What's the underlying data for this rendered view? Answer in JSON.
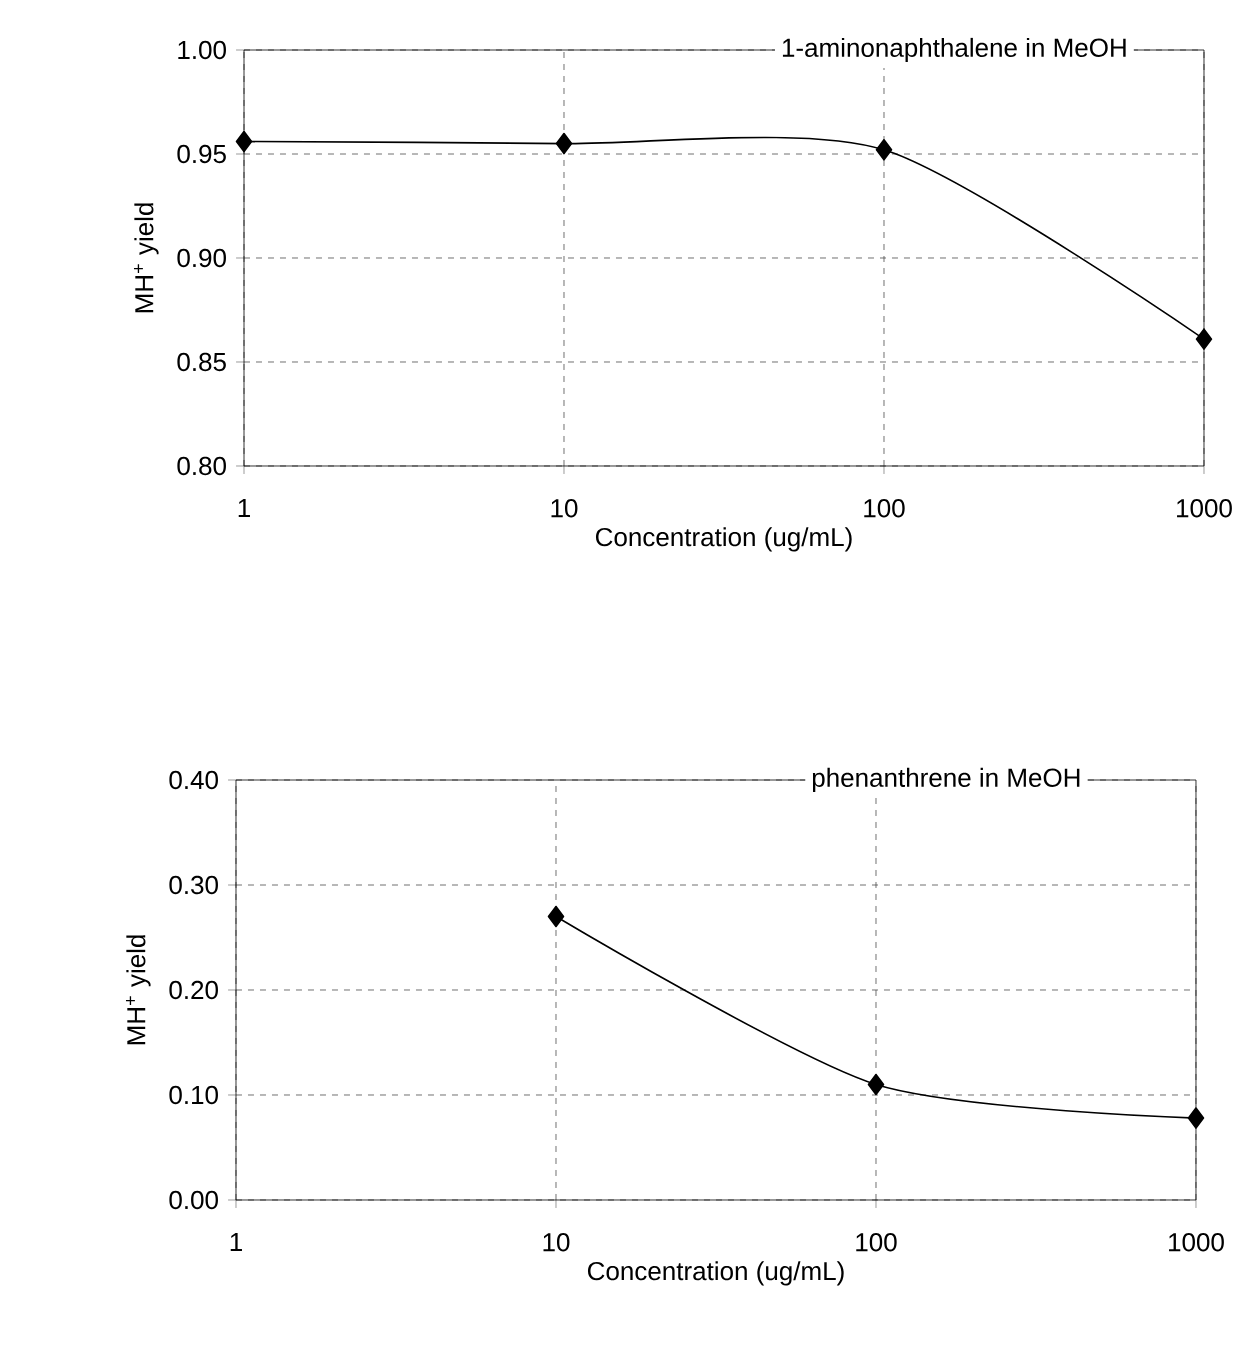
{
  "chart_data": [
    {
      "type": "line",
      "title": "1-aminonaphthalene in MeOH",
      "xlabel": "Concentration (ug/mL)",
      "ylabel": "MH$^{+}$ yield",
      "log": "x",
      "grid": true,
      "marker": "diamond",
      "line_style": "solid",
      "x": [
        1,
        10,
        100,
        1000
      ],
      "series": [
        {
          "color": "#000000",
          "values": [
            0.956,
            0.955,
            0.952,
            0.861
          ]
        }
      ],
      "xlim": [
        1,
        1000
      ],
      "xticks": [
        1,
        10,
        100,
        1000
      ],
      "ylim": [
        0.8,
        1.0
      ],
      "yticks": [
        {
          "value": 0.8,
          "label": "0.80"
        },
        {
          "value": 0.85,
          "label": "0.85"
        },
        {
          "value": 0.9,
          "label": "0.90"
        },
        {
          "value": 0.95,
          "label": "0.95"
        },
        {
          "value": 1.0,
          "label": "1.00"
        }
      ]
    },
    {
      "type": "line",
      "title": "phenanthrene in MeOH",
      "xlabel": "Concentration (ug/mL)",
      "ylabel": "MH$^{+}$ yield",
      "log": "x",
      "grid": true,
      "marker": "diamond",
      "line_style": "solid",
      "x": [
        10,
        100,
        1000
      ],
      "series": [
        {
          "color": "#000000",
          "values": [
            0.27,
            0.11,
            0.078
          ]
        }
      ],
      "xlim": [
        1,
        1000
      ],
      "xticks": [
        1,
        10,
        100,
        1000
      ],
      "ylim": [
        0.0,
        0.4
      ],
      "yticks": [
        {
          "value": 0.0,
          "label": "0.00"
        },
        {
          "value": 0.1,
          "label": "0.10"
        },
        {
          "value": 0.2,
          "label": "0.20"
        },
        {
          "value": 0.3,
          "label": "0.30"
        },
        {
          "value": 0.4,
          "label": "0.40"
        }
      ]
    }
  ]
}
